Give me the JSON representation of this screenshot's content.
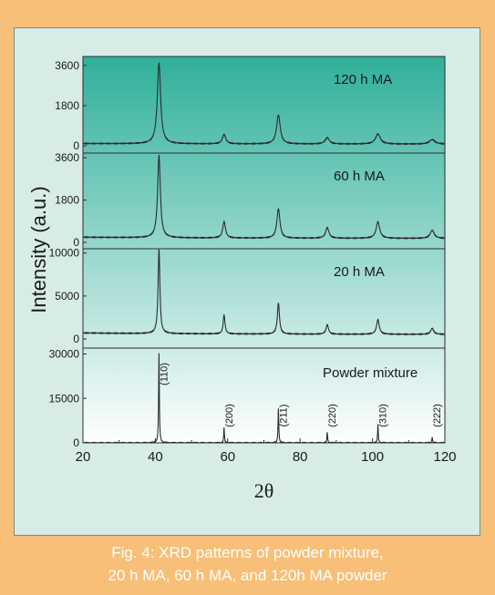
{
  "figure": {
    "caption_line1": "Fig. 4: XRD patterns of powder mixture,",
    "caption_line2": "20 h MA, 60 h MA, and 120h MA powder"
  },
  "colors": {
    "frame": "#f7bf78",
    "panel": "#d7ece6",
    "plot_top": "#2fb09a",
    "plot_bottom": "#ffffff",
    "line": "#2c2c2c",
    "caption_text": "#ffffff"
  },
  "chart_data": {
    "type": "line",
    "title": "",
    "xlabel": "2θ",
    "ylabel": "Intensity (a.u.)",
    "xlim": [
      20,
      120
    ],
    "x_ticks": [
      20,
      40,
      60,
      80,
      100,
      120
    ],
    "grid": false,
    "stacked_panels": true,
    "panels": [
      {
        "label": "120 h MA",
        "ylim": [
          0,
          4000
        ],
        "y_ticks": [
          0,
          1800,
          3600
        ],
        "baseline": 100,
        "peaks": [
          {
            "x": 41.0,
            "y": 3600,
            "width": 0.55
          },
          {
            "x": 59.0,
            "y": 420,
            "width": 0.55
          },
          {
            "x": 74.0,
            "y": 1300,
            "width": 0.6
          },
          {
            "x": 87.5,
            "y": 280,
            "width": 0.7
          },
          {
            "x": 101.5,
            "y": 450,
            "width": 0.8
          },
          {
            "x": 116.5,
            "y": 200,
            "width": 0.9
          }
        ]
      },
      {
        "label": "60 h MA",
        "ylim": [
          0,
          3800
        ],
        "y_ticks": [
          0,
          1800,
          3600
        ],
        "baseline": 220,
        "peaks": [
          {
            "x": 41.0,
            "y": 3500,
            "width": 0.45
          },
          {
            "x": 59.0,
            "y": 700,
            "width": 0.45
          },
          {
            "x": 74.0,
            "y": 1250,
            "width": 0.5
          },
          {
            "x": 87.5,
            "y": 450,
            "width": 0.55
          },
          {
            "x": 101.5,
            "y": 700,
            "width": 0.6
          },
          {
            "x": 116.5,
            "y": 350,
            "width": 0.65
          }
        ]
      },
      {
        "label": "20 h MA",
        "ylim": [
          0,
          10500
        ],
        "y_ticks": [
          0,
          5000,
          10000
        ],
        "baseline": 700,
        "peaks": [
          {
            "x": 41.0,
            "y": 9800,
            "width": 0.3
          },
          {
            "x": 59.0,
            "y": 2200,
            "width": 0.3
          },
          {
            "x": 74.0,
            "y": 3600,
            "width": 0.35
          },
          {
            "x": 87.5,
            "y": 1100,
            "width": 0.4
          },
          {
            "x": 101.5,
            "y": 1700,
            "width": 0.45
          },
          {
            "x": 116.5,
            "y": 700,
            "width": 0.5
          }
        ]
      },
      {
        "label": "Powder mixture",
        "ylim": [
          0,
          32000
        ],
        "y_ticks": [
          0,
          15000,
          30000
        ],
        "baseline": 0,
        "peaks": [
          {
            "x": 41.0,
            "y": 30000,
            "width": 0.12,
            "hkl": "(110)"
          },
          {
            "x": 59.0,
            "y": 5000,
            "width": 0.12,
            "hkl": "(200)"
          },
          {
            "x": 74.0,
            "y": 11500,
            "width": 0.12,
            "hkl": "(211)"
          },
          {
            "x": 87.5,
            "y": 3500,
            "width": 0.12,
            "hkl": "(220)"
          },
          {
            "x": 101.5,
            "y": 6000,
            "width": 0.12,
            "hkl": "(310)"
          },
          {
            "x": 116.5,
            "y": 1800,
            "width": 0.12,
            "hkl": "(222)"
          }
        ]
      }
    ]
  }
}
